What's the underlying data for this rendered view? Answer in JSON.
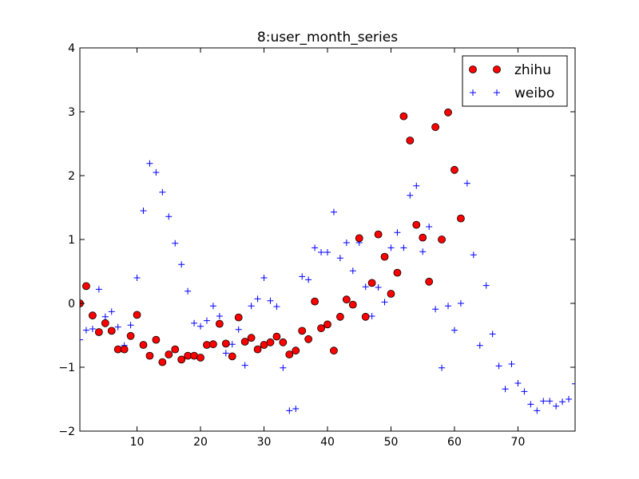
{
  "chart_data": {
    "type": "scatter",
    "title": "8:user_month_series",
    "xlabel": "",
    "ylabel": "",
    "xlim": [
      1,
      79
    ],
    "ylim": [
      -2,
      4
    ],
    "xticks": [
      10,
      20,
      30,
      40,
      50,
      60,
      70
    ],
    "yticks": [
      -2,
      -1,
      0,
      1,
      2,
      3,
      4
    ],
    "xtick_labels": [
      "10",
      "20",
      "30",
      "40",
      "50",
      "60",
      "70"
    ],
    "ytick_labels": [
      "−2",
      "−1",
      "0",
      "1",
      "2",
      "3",
      "4"
    ],
    "legend_position": "top-right",
    "series": [
      {
        "name": "zhihu",
        "marker": "circle",
        "color": "#ff0000",
        "edge_color": "#000000",
        "x": [
          1,
          2,
          3,
          4,
          5,
          6,
          7,
          8,
          9,
          10,
          11,
          12,
          13,
          14,
          15,
          16,
          17,
          18,
          19,
          20,
          21,
          22,
          23,
          24,
          25,
          26,
          27,
          28,
          29,
          30,
          31,
          32,
          33,
          34,
          35,
          36,
          37,
          38,
          39,
          40,
          41,
          42,
          43,
          44,
          45,
          46,
          47,
          48,
          49,
          50,
          51,
          52,
          53,
          54,
          55,
          56,
          57,
          58,
          59,
          60,
          61
        ],
        "y": [
          0.0,
          0.27,
          -0.19,
          -0.45,
          -0.31,
          -0.43,
          -0.72,
          -0.72,
          -0.51,
          -0.18,
          -0.65,
          -0.82,
          -0.57,
          -0.92,
          -0.8,
          -0.72,
          -0.88,
          -0.82,
          -0.82,
          -0.85,
          -0.65,
          -0.64,
          -0.32,
          -0.63,
          -0.83,
          -0.22,
          -0.6,
          -0.54,
          -0.72,
          -0.65,
          -0.61,
          -0.52,
          -0.61,
          -0.8,
          -0.74,
          -0.43,
          -0.56,
          0.03,
          -0.39,
          -0.33,
          -0.74,
          -0.21,
          0.06,
          -0.02,
          1.02,
          -0.21,
          0.32,
          1.08,
          0.73,
          0.15,
          0.48,
          2.93,
          2.55,
          1.23,
          1.03,
          0.34,
          2.76,
          1.0,
          2.99,
          2.09,
          1.33
        ]
      },
      {
        "name": "weibo",
        "marker": "plus",
        "color": "#0000ff",
        "x": [
          1,
          2,
          3,
          4,
          5,
          6,
          7,
          8,
          9,
          10,
          11,
          12,
          13,
          14,
          15,
          16,
          17,
          18,
          19,
          20,
          21,
          22,
          23,
          24,
          25,
          26,
          27,
          28,
          29,
          30,
          31,
          32,
          33,
          34,
          35,
          36,
          37,
          38,
          39,
          40,
          41,
          42,
          43,
          44,
          45,
          46,
          47,
          48,
          49,
          50,
          51,
          52,
          53,
          54,
          55,
          56,
          57,
          58,
          59,
          60,
          61,
          62,
          63,
          64,
          65,
          66,
          67,
          68,
          69,
          70,
          71,
          72,
          73,
          74,
          75,
          76,
          77,
          78,
          79
        ],
        "y": [
          -0.57,
          -0.42,
          -0.4,
          0.22,
          -0.21,
          -0.13,
          -0.37,
          -0.66,
          -0.34,
          0.4,
          1.45,
          2.19,
          2.05,
          1.74,
          1.36,
          0.94,
          0.61,
          0.19,
          -0.31,
          -0.36,
          -0.27,
          -0.04,
          -0.2,
          -0.78,
          -0.64,
          -0.41,
          -0.97,
          -0.04,
          0.07,
          0.4,
          0.04,
          -0.05,
          -1.01,
          -1.68,
          -1.65,
          0.42,
          0.37,
          0.87,
          0.8,
          0.8,
          1.43,
          0.71,
          0.95,
          0.51,
          0.95,
          0.26,
          -0.2,
          0.25,
          0.02,
          0.87,
          1.11,
          0.87,
          1.69,
          1.84,
          0.81,
          1.2,
          -0.09,
          -1.01,
          -0.04,
          -0.42,
          0.0,
          1.88,
          0.76,
          -0.66,
          0.28,
          -0.48,
          -0.98,
          -1.34,
          -0.95,
          -1.25,
          -1.38,
          -1.58,
          -1.68,
          -1.53,
          -1.53,
          -1.61,
          -1.54,
          -1.5,
          -1.26
        ]
      }
    ]
  }
}
